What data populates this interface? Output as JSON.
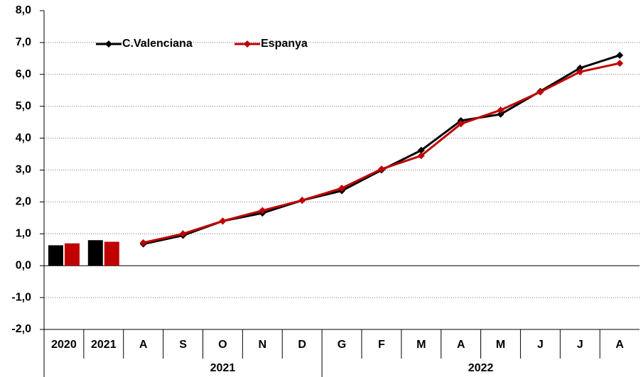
{
  "chart_data": {
    "type": "combo",
    "bar_categories": [
      "2020",
      "2021"
    ],
    "groups": [
      {
        "label": "2021",
        "categories": [
          "A",
          "S",
          "O",
          "N",
          "D"
        ]
      },
      {
        "label": "2022",
        "categories": [
          "G",
          "F",
          "M",
          "A",
          "M",
          "J",
          "J",
          "A"
        ]
      }
    ],
    "series": [
      {
        "name": "C.Valenciana",
        "color": "#000000",
        "bar_values": [
          0.64,
          0.8
        ],
        "values": [
          0.68,
          0.95,
          1.4,
          1.65,
          2.05,
          2.35,
          3.0,
          3.62,
          4.55,
          4.75,
          5.47,
          6.2,
          6.6
        ]
      },
      {
        "name": "Espanya",
        "color": "#c00000",
        "bar_values": [
          0.7,
          0.75
        ],
        "values": [
          0.72,
          1.0,
          1.4,
          1.73,
          2.05,
          2.43,
          3.03,
          3.45,
          4.45,
          4.88,
          5.45,
          6.08,
          6.35
        ]
      }
    ],
    "ylim": [
      -2,
      8
    ],
    "yticks": [
      {
        "value": -2,
        "label": "-2,0"
      },
      {
        "value": -1,
        "label": "-1,0"
      },
      {
        "value": 0,
        "label": "0,0"
      },
      {
        "value": 1,
        "label": "1,0"
      },
      {
        "value": 2,
        "label": "2,0"
      },
      {
        "value": 3,
        "label": "3,0"
      },
      {
        "value": 4,
        "label": "4,0"
      },
      {
        "value": 5,
        "label": "5,0"
      },
      {
        "value": 6,
        "label": "6,0"
      },
      {
        "value": 7,
        "label": "7,0"
      },
      {
        "value": 8,
        "label": "8,0"
      }
    ],
    "grid": true,
    "legend": "top-left"
  }
}
